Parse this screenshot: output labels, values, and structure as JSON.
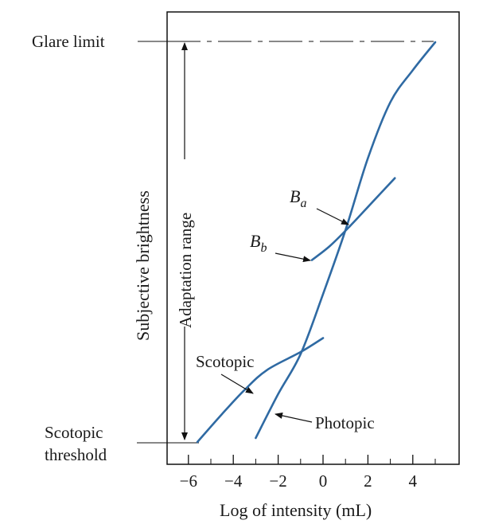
{
  "chart_data": {
    "type": "line",
    "xlabel": "Log of intensity (mL)",
    "ylabel": "Subjective brightness",
    "xlim": [
      -7,
      5.5
    ],
    "ylim": [
      0,
      1
    ],
    "x_ticks": [
      -6,
      -4,
      -2,
      0,
      2,
      4
    ],
    "x_tick_labels": [
      "−6",
      "−4",
      "−2",
      "0",
      "2",
      "4"
    ],
    "grid": false,
    "line_color": "#2f6aa3",
    "series": [
      {
        "name": "Photopic",
        "points": [
          [
            -3,
            0.01
          ],
          [
            -2,
            0.12
          ],
          [
            -1,
            0.22
          ],
          [
            0,
            0.37
          ],
          [
            1,
            0.53
          ],
          [
            2,
            0.71
          ],
          [
            3,
            0.85
          ],
          [
            4,
            0.93
          ],
          [
            5,
            1.0
          ]
        ]
      },
      {
        "name": "Scotopic",
        "points": [
          [
            -5.6,
            0.0
          ],
          [
            -4.5,
            0.07
          ],
          [
            -3.5,
            0.13
          ],
          [
            -2.5,
            0.18
          ],
          [
            -1.0,
            0.225
          ],
          [
            0,
            0.26
          ]
        ]
      },
      {
        "name": "Bb",
        "points": [
          [
            -0.5,
            0.455
          ],
          [
            0.3,
            0.49
          ],
          [
            1.2,
            0.54
          ],
          [
            2.2,
            0.6
          ],
          [
            3.2,
            0.66
          ]
        ]
      }
    ],
    "annotations": {
      "glare_limit": "Glare limit",
      "scotopic_threshold_1": "Scotopic",
      "scotopic_threshold_2": "threshold",
      "adaptation_range": "Adaptation range",
      "scotopic": "Scotopic",
      "photopic": "Photopic",
      "ba_main": "B",
      "ba_sub": "a",
      "bb_main": "B",
      "bb_sub": "b"
    }
  }
}
